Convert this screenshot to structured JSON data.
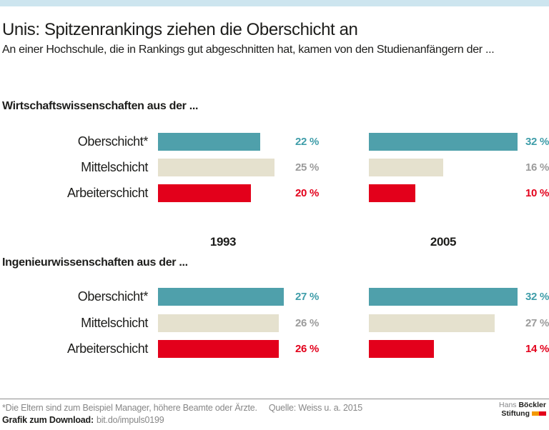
{
  "header": {
    "title": "Unis: Spitzenrankings ziehen die Oberschicht an",
    "subtitle": "An einer Hochschule, die in Rankings gut abgeschnitten hat, kamen von den Studienanfängern der ..."
  },
  "colors": {
    "top_accent": "#cde5ef",
    "text_dark": "#1d1d1b",
    "footnote_gray": "#878787",
    "rule_gray": "#8e8e8e",
    "series": {
      "teal": {
        "bar": "#4fa0ab",
        "label": "#3f9da9"
      },
      "beige": {
        "bar": "#e5e1ce",
        "label": "#9b9b9b"
      },
      "red": {
        "bar": "#e3001b",
        "label": "#e3001b"
      }
    },
    "logo_orange": "#f39900",
    "logo_red": "#e3001b"
  },
  "chart_data": {
    "type": "bar",
    "orientation": "horizontal",
    "unit": "%",
    "value_suffix": " %",
    "xlim": [
      0,
      32
    ],
    "grid": false,
    "years": [
      "1993",
      "2005"
    ],
    "sections": [
      {
        "title": "Wirtschaftswissenschaften aus der ...",
        "rows": [
          {
            "label": "Oberschicht*",
            "color": "teal",
            "values": [
              22,
              32
            ]
          },
          {
            "label": "Mittelschicht",
            "color": "beige",
            "values": [
              25,
              16
            ]
          },
          {
            "label": "Arbeiterschicht",
            "color": "red",
            "values": [
              20,
              10
            ]
          }
        ]
      },
      {
        "title": "Ingenieurwissenschaften aus der ...",
        "rows": [
          {
            "label": "Oberschicht*",
            "color": "teal",
            "values": [
              27,
              32
            ]
          },
          {
            "label": "Mittelschicht",
            "color": "beige",
            "values": [
              26,
              27
            ]
          },
          {
            "label": "Arbeiterschicht",
            "color": "red",
            "values": [
              26,
              14
            ]
          }
        ]
      }
    ]
  },
  "footer": {
    "footnote": "*Die Eltern sind zum Beispiel Manager, höhere Beamte oder Ärzte.",
    "source": "Quelle: Weiss u. a. 2015",
    "download_label": "Grafik zum Download:",
    "download_url": "bit.do/impuls0199",
    "logo": {
      "name_light": "Hans",
      "name_bold": "Böckler",
      "line2": "Stiftung"
    }
  }
}
